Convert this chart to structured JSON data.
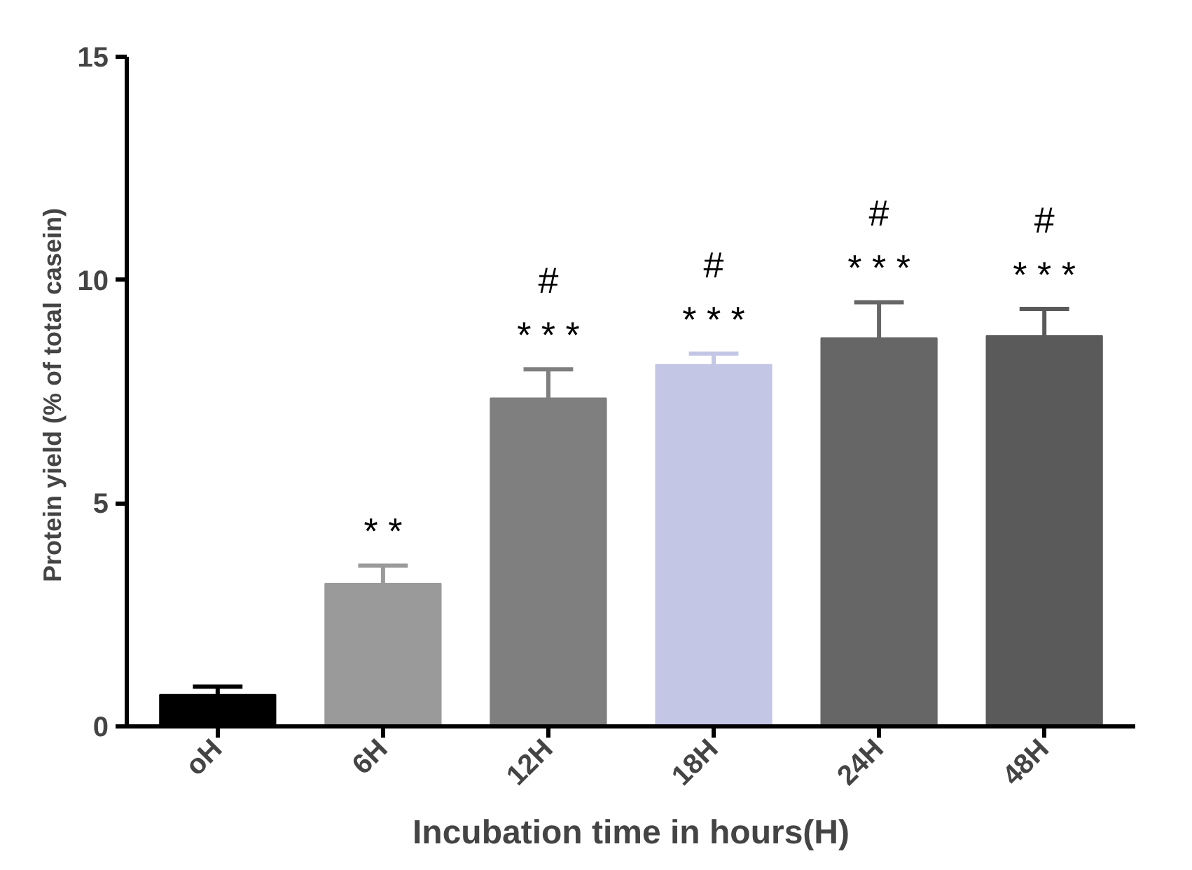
{
  "chart_data": {
    "type": "bar",
    "xlabel": "Incubation time in hours(H)",
    "ylabel": "Protein yield (%  of total casein)",
    "categories": [
      "oH",
      "6H",
      "12H",
      "18H",
      "24H",
      "48H"
    ],
    "values": [
      0.71,
      3.2,
      7.35,
      8.1,
      8.7,
      8.75
    ],
    "colors": [
      "#000000",
      "#9a9a9a",
      "#7f7f7f",
      "#c4c6e6",
      "#666666",
      "#5a5a5a"
    ],
    "errors": [
      [
        0.71,
        0.89
      ],
      [
        3.2,
        3.6
      ],
      [
        7.35,
        8.0
      ],
      [
        8.1,
        8.35
      ],
      [
        8.7,
        9.5
      ],
      [
        8.75,
        9.35
      ]
    ],
    "value_labels": [
      null,
      "* *",
      "#\n* * *",
      "#\n* * *",
      "#\n* * *",
      "#\n* * *"
    ],
    "ylim": [
      0,
      15
    ],
    "yticks": [
      0,
      5,
      10,
      15
    ],
    "grid": false
  }
}
